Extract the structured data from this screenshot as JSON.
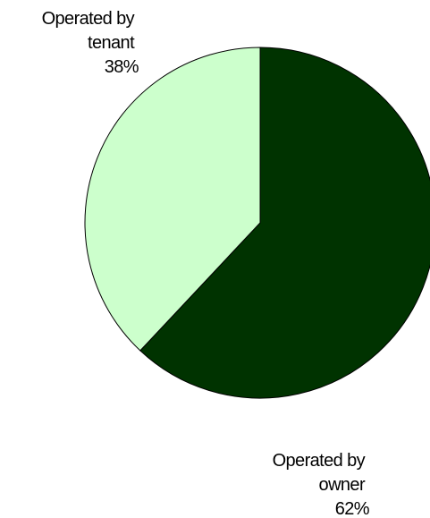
{
  "chart_data": {
    "type": "pie",
    "slices": [
      {
        "label_lines": [
          "Operated by",
          "owner"
        ],
        "value": 62,
        "value_text": "62%",
        "color": "#003300"
      },
      {
        "label_lines": [
          "Operated by",
          "tenant"
        ],
        "value": 38,
        "value_text": "38%",
        "color": "#ccffcc"
      }
    ],
    "start_angle_deg": 0,
    "direction": "clockwise",
    "outline_color": "#000000",
    "legend": "none",
    "title": ""
  }
}
